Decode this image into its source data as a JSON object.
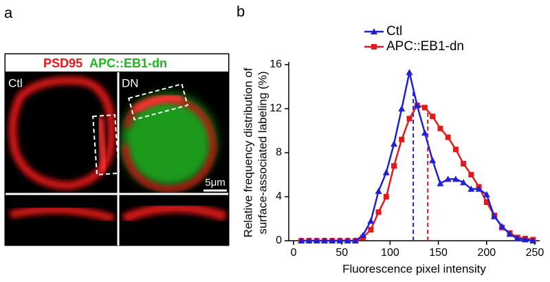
{
  "panel_labels": [
    "a",
    "b"
  ],
  "panel_a": {
    "header": [
      "PSD95",
      "APC::EB1-dn"
    ],
    "conditions": [
      "Ctl",
      "DN"
    ],
    "scale_bar": "5μm"
  },
  "chart_data": {
    "type": "line",
    "xlabel": "Fluorescence pixel intensity",
    "ylabel": [
      "Relative frequency distribution of",
      "surface-associated labeling (%)"
    ],
    "x": [
      8,
      16,
      24,
      32,
      40,
      48,
      56,
      64,
      72,
      80,
      88,
      96,
      104,
      112,
      120,
      128,
      136,
      144,
      152,
      160,
      168,
      176,
      184,
      192,
      200,
      208,
      216,
      224,
      232,
      240,
      248
    ],
    "series": [
      {
        "name": "Ctl",
        "color": "#1f1fd6",
        "marker": "triangle",
        "values": [
          0,
          0,
          0,
          0,
          0,
          0,
          0,
          0,
          0.5,
          1.8,
          4.5,
          6.2,
          8.8,
          12,
          15.3,
          12.3,
          9.8,
          7.3,
          5.2,
          5.6,
          5.6,
          5.3,
          4.7,
          4.7,
          4.2,
          2.2,
          1.3,
          0.6,
          0.2,
          0.1,
          0
        ]
      },
      {
        "name": "APC::EB1-dn",
        "color": "#e41a1a",
        "marker": "square",
        "values": [
          0,
          0,
          0,
          0,
          0,
          0,
          0,
          0,
          0.3,
          1.0,
          2.6,
          4.0,
          6.8,
          9.2,
          11.1,
          12.3,
          12.1,
          11.3,
          10.2,
          9.4,
          8.3,
          7.0,
          6.0,
          4.9,
          3.5,
          2.3,
          1.2,
          0.7,
          0.3,
          0.2,
          0.1
        ]
      }
    ],
    "vlines": [
      {
        "x": 124,
        "series": 0
      },
      {
        "x": 139,
        "series": 1
      }
    ],
    "xlim": [
      -5,
      255
    ],
    "xticks": [
      0,
      50,
      100,
      150,
      200,
      250
    ],
    "ylim": [
      0,
      16
    ],
    "yticks": [
      0,
      4,
      8,
      12,
      16
    ]
  }
}
